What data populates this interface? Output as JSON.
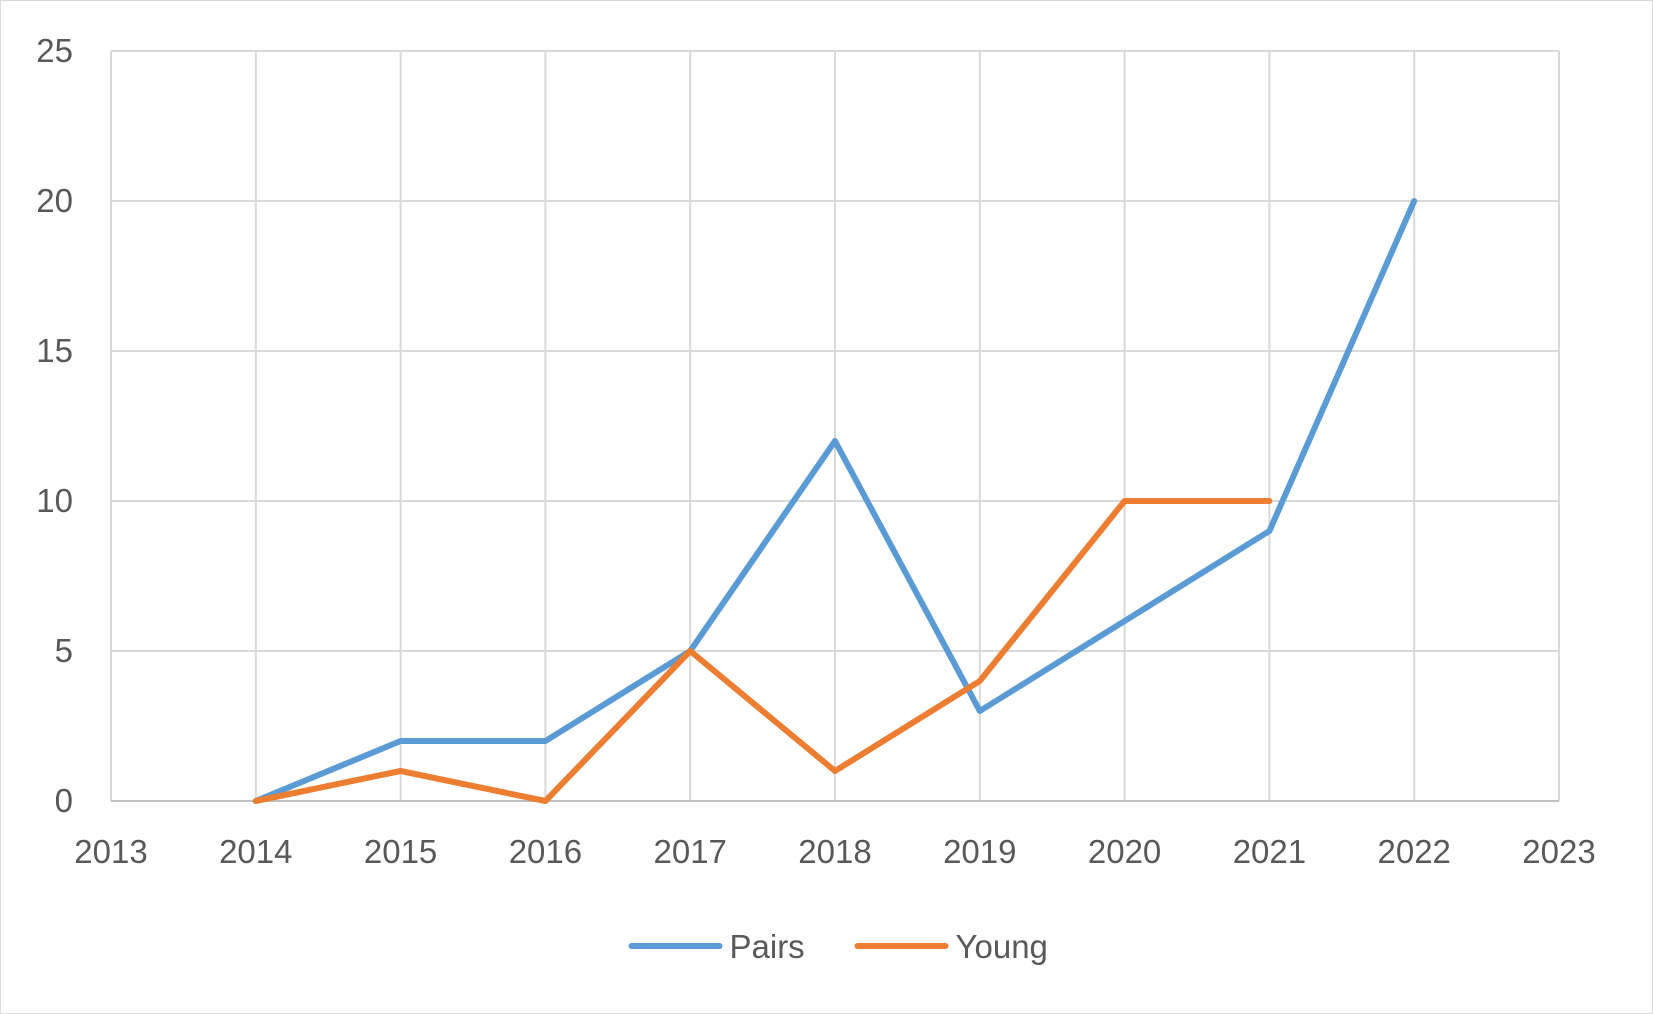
{
  "chart_data": {
    "type": "line",
    "title": "",
    "xlabel": "",
    "ylabel": "",
    "x_ticks": [
      2013,
      2014,
      2015,
      2016,
      2017,
      2018,
      2019,
      2020,
      2021,
      2022,
      2023
    ],
    "y_ticks": [
      0,
      5,
      10,
      15,
      20,
      25
    ],
    "xlim": [
      2013,
      2023
    ],
    "ylim": [
      0,
      25
    ],
    "grid": true,
    "legend_position": "bottom",
    "series": [
      {
        "name": "Pairs",
        "color": "#5b9bd5",
        "x": [
          2014,
          2015,
          2016,
          2017,
          2018,
          2019,
          2020,
          2021,
          2022
        ],
        "values": [
          0,
          2,
          2,
          5,
          12,
          3,
          6,
          9,
          20
        ]
      },
      {
        "name": "Young",
        "color": "#ed7d31",
        "x": [
          2014,
          2015,
          2016,
          2017,
          2018,
          2019,
          2020,
          2021
        ],
        "values": [
          0,
          1,
          0,
          5,
          1,
          4,
          10,
          10
        ]
      }
    ],
    "gridline_color": "#d9d9d9",
    "axis_color": "#bfbfbf"
  }
}
